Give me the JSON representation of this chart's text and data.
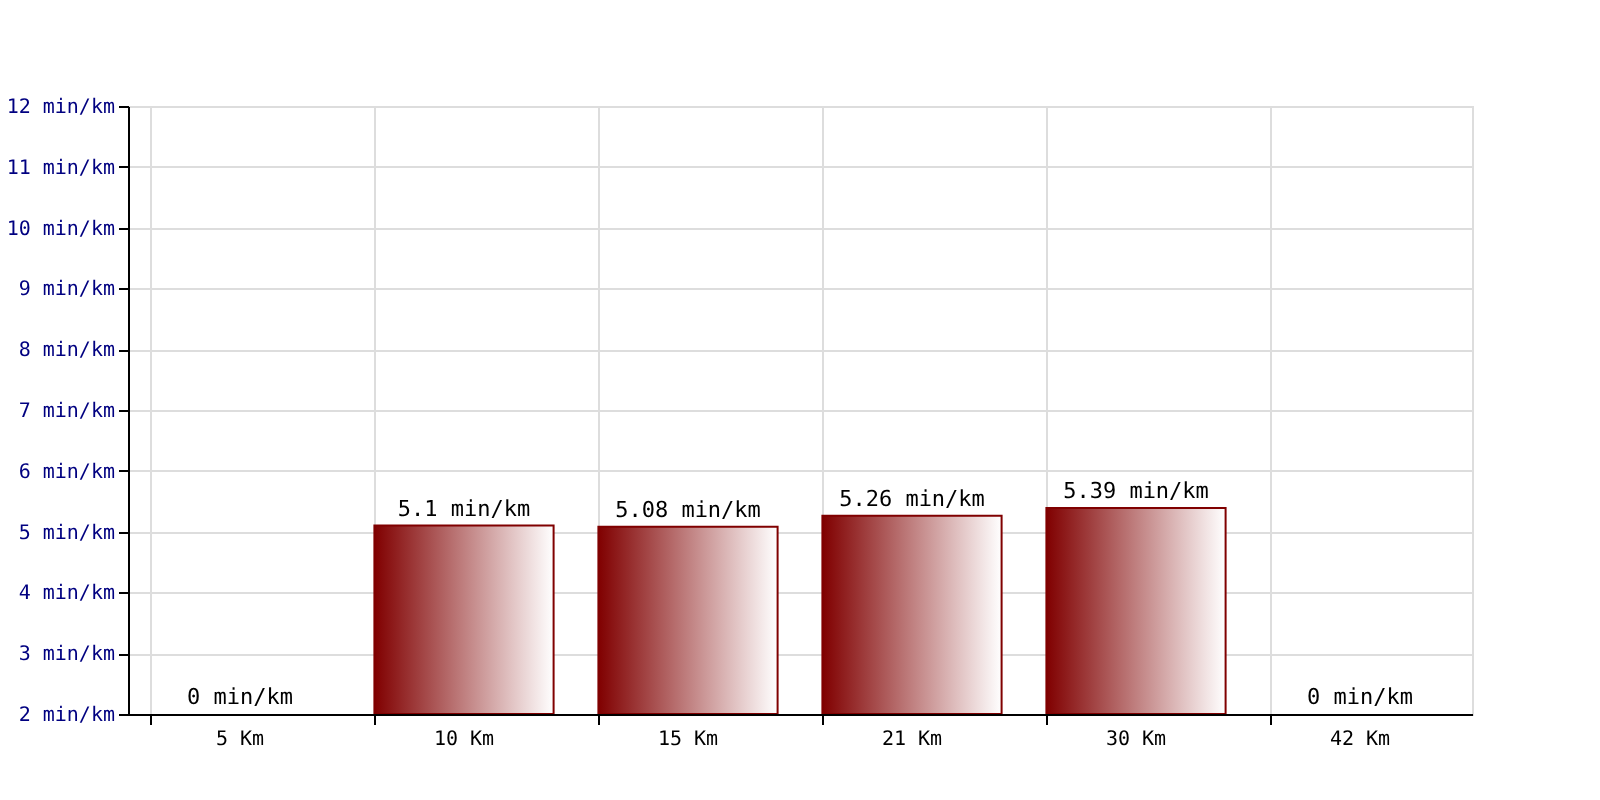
{
  "chart_data": {
    "type": "bar",
    "categories": [
      "5 Km",
      "10 Km",
      "15 Km",
      "21 Km",
      "30 Km",
      "42 Km"
    ],
    "series": [
      {
        "color": "#800000",
        "values": [
          null,
          5.1,
          5.08,
          5.26,
          5.39,
          null
        ],
        "value_labels": [
          "0 min/km",
          "5.1 min/km",
          "5.08 min/km",
          "5.26 min/km",
          "5.39 min/km",
          "0 min/km"
        ]
      }
    ],
    "ylim": [
      2,
      12
    ],
    "yticks": [
      {
        "value": 2,
        "label": "2 min/km"
      },
      {
        "value": 3,
        "label": "3 min/km"
      },
      {
        "value": 4,
        "label": "4 min/km"
      },
      {
        "value": 5,
        "label": "5 min/km"
      },
      {
        "value": 6,
        "label": "6 min/km"
      },
      {
        "value": 7,
        "label": "7 min/km"
      },
      {
        "value": 8,
        "label": "8 min/km"
      },
      {
        "value": 9,
        "label": "9 min/km"
      },
      {
        "value": 10,
        "label": "10 min/km"
      },
      {
        "value": 11,
        "label": "11 min/km"
      },
      {
        "value": 12,
        "label": "12 min/km"
      }
    ],
    "grid": true
  }
}
